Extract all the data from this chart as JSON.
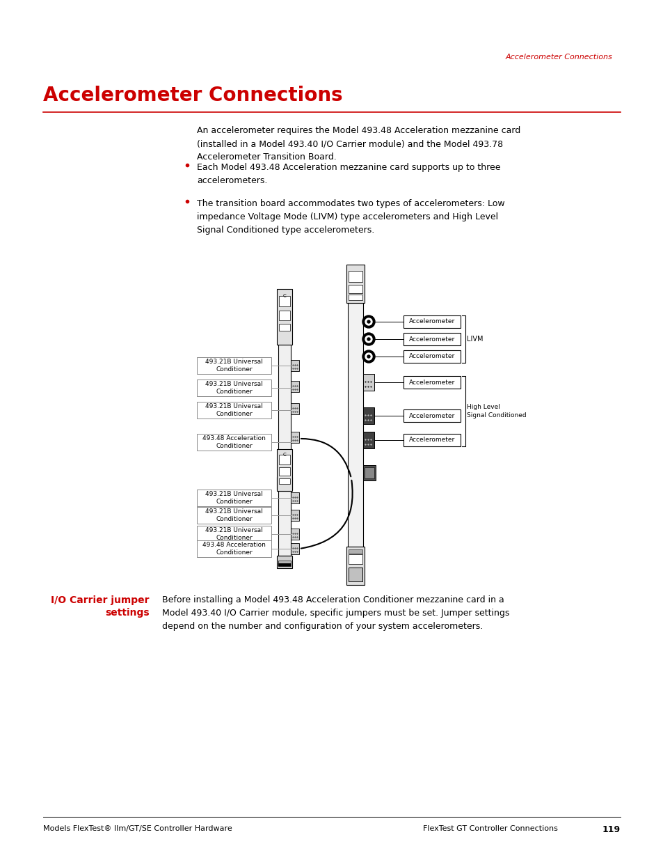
{
  "bg_color": "#ffffff",
  "header_text": "Accelerometer Connections",
  "header_color": "#cc0000",
  "title_text": "Accelerometer Connections",
  "title_color": "#cc0000",
  "title_fontsize": 20,
  "rule_color": "#cc0000",
  "body_text": "An accelerometer requires the Model 493.48 Acceleration mezzanine card\n(installed in a Model 493.40 I/O Carrier module) and the Model 493.78\nAccelerometer Transition Board.",
  "bullet1": "Each Model 493.48 Acceleration mezzanine card supports up to three\naccelerometers.",
  "bullet2": "The transition board accommodates two types of accelerometers: Low\nimpedance Voltage Mode (LIVM) type accelerometers and High Level\nSignal Conditioned type accelerometers.",
  "left_boxes": [
    "493.21B Universal\nConditioner",
    "493.21B Universal\nConditioner",
    "493.21B Universal\nConditioner",
    "493.48 Acceleration\nConditioner"
  ],
  "left_boxes2": [
    "493.21B Universal\nConditioner",
    "493.21B Universal\nConditioner",
    "493.21B Universal\nConditioner",
    "493.48 Acceleration\nConditioner"
  ],
  "livm_label": "LIVM",
  "high_level_label": "High Level\nSignal Conditioned",
  "side_heading_line1": "I/O Carrier jumper",
  "side_heading_line2": "settings",
  "side_heading_color": "#cc0000",
  "side_text": "Before installing a Model 493.48 Acceleration Conditioner mezzanine card in a\nModel 493.40 I/O Carrier module, specific jumpers must be set. Jumper settings\ndepend on the number and configuration of your system accelerometers.",
  "footer_left": "Models FlexTest® IIm/GT/SE Controller Hardware",
  "footer_right": "FlexTest GT Controller Connections",
  "page_number": "119",
  "text_color": "#000000"
}
